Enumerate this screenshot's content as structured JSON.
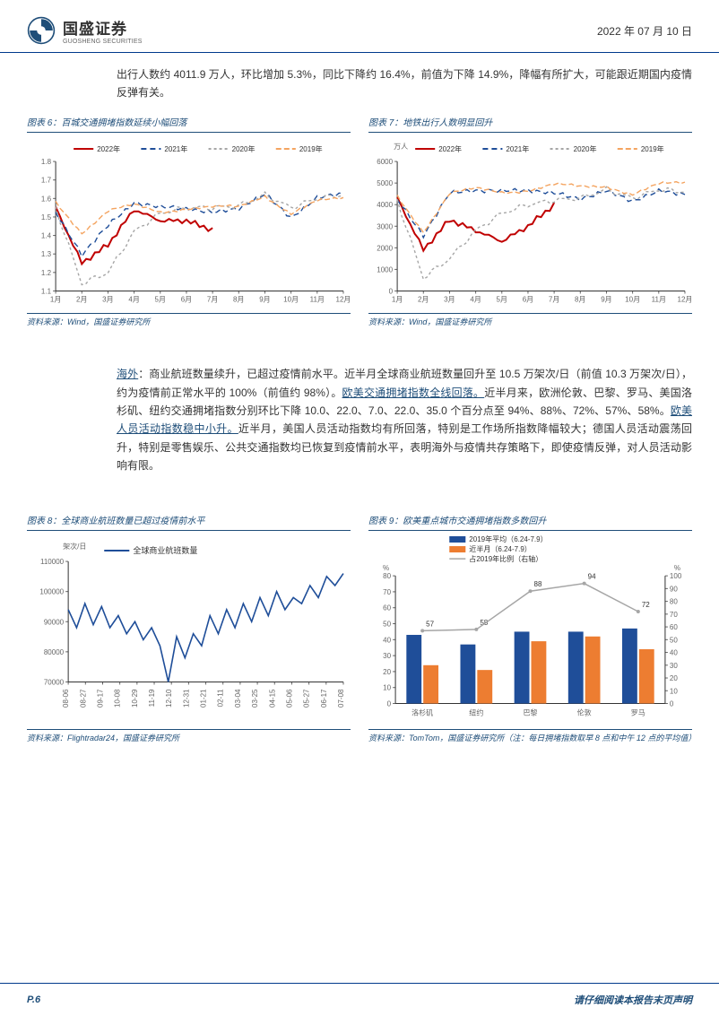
{
  "header": {
    "company_cn": "国盛证券",
    "company_en": "GUOSHENG SECURITIES",
    "date": "2022 年 07 月 10 日"
  },
  "para1": "出行人数约 4011.9 万人，环比增加 5.3%，同比下降约 16.4%，前值为下降 14.9%，降幅有所扩大，可能跟近期国内疫情反弹有关。",
  "chart6": {
    "title": "图表 6：百城交通拥堵指数延续小幅回落",
    "source": "资料来源：Wind，国盛证券研究所",
    "legend": [
      "2022年",
      "2021年",
      "2020年",
      "2019年"
    ],
    "legend_colors": [
      "#c00000",
      "#1f4e99",
      "#a6a6a6",
      "#f4a460"
    ],
    "legend_dash": [
      "0",
      "6,4",
      "3,3",
      "6,3"
    ],
    "months": [
      "1月",
      "2月",
      "3月",
      "4月",
      "5月",
      "6月",
      "7月",
      "8月",
      "9月",
      "10月",
      "11月",
      "12月"
    ],
    "ylim": [
      1.1,
      1.8
    ],
    "yticks": [
      1.1,
      1.2,
      1.3,
      1.4,
      1.5,
      1.6,
      1.7,
      1.8
    ],
    "series": {
      "2022": [
        1.55,
        1.25,
        1.35,
        1.54,
        1.48,
        1.48,
        1.43
      ],
      "2021": [
        1.52,
        1.3,
        1.45,
        1.58,
        1.55,
        1.55,
        1.52,
        1.55,
        1.62,
        1.5,
        1.6,
        1.63
      ],
      "2020": [
        1.55,
        1.14,
        1.2,
        1.42,
        1.52,
        1.55,
        1.55,
        1.56,
        1.62,
        1.55,
        1.6,
        1.62
      ],
      "2019": [
        1.58,
        1.42,
        1.53,
        1.56,
        1.53,
        1.55,
        1.55,
        1.55,
        1.62,
        1.52,
        1.58,
        1.6
      ]
    }
  },
  "chart7": {
    "title": "图表 7：地铁出行人数明显回升",
    "source": "资料来源：Wind，国盛证券研究所",
    "ylabel": "万人",
    "legend": [
      "2022年",
      "2021年",
      "2020年",
      "2019年"
    ],
    "legend_colors": [
      "#c00000",
      "#1f4e99",
      "#a6a6a6",
      "#f4a460"
    ],
    "legend_dash": [
      "0",
      "6,4",
      "3,3",
      "6,3"
    ],
    "months": [
      "1月",
      "2月",
      "3月",
      "4月",
      "5月",
      "6月",
      "7月",
      "8月",
      "9月",
      "10月",
      "11月",
      "12月"
    ],
    "ylim": [
      0,
      6000
    ],
    "yticks": [
      0,
      1000,
      2000,
      3000,
      4000,
      5000,
      6000
    ],
    "series": {
      "2022": [
        4300,
        1900,
        3300,
        2800,
        2300,
        3000,
        4000
      ],
      "2021": [
        4200,
        2600,
        4500,
        4700,
        4600,
        4700,
        4500,
        4300,
        4600,
        4200,
        4600,
        4500
      ],
      "2020": [
        4200,
        600,
        1500,
        2800,
        3600,
        4000,
        4200,
        4300,
        4700,
        4300,
        4700,
        4600
      ],
      "2019": [
        4400,
        2800,
        4500,
        4700,
        4600,
        4700,
        4900,
        4800,
        4900,
        4500,
        4900,
        5000
      ]
    }
  },
  "para2_pre": "海外",
  "para2": "：商业航班数量续升，已超过疫情前水平。近半月全球商业航班数量回升至 10.5 万架次/日（前值 10.3 万架次/日），约为疫情前正常水平的 100%（前值约 98%）。",
  "para2_u2": "欧美交通拥堵指数全线回落。",
  "para2_b": "近半月来，欧洲伦敦、巴黎、罗马、美国洛杉矶、纽约交通拥堵指数分别环比下降 10.0、22.0、7.0、22.0、35.0 个百分点至 94%、88%、72%、57%、58%。",
  "para2_u3": "欧美人员活动指数稳中小升。",
  "para2_c": "近半月，美国人员活动指数均有所回落，特别是工作场所指数降幅较大；德国人员活动震荡回升，特别是零售娱乐、公共交通指数均已恢复到疫情前水平，表明海外与疫情共存策略下，即使疫情反弹，对人员活动影响有限。",
  "chart8": {
    "title": "图表 8：全球商业航班数量已超过疫情前水平",
    "source": "资料来源：Flightradar24，国盛证券研究所",
    "legend_label": "全球商业航班数量",
    "legend_color": "#1f4e99",
    "ylabel": "架次/日",
    "ylim": [
      70000,
      110000
    ],
    "yticks": [
      70000,
      80000,
      90000,
      100000,
      110000
    ],
    "xticks": [
      "08-06",
      "08-27",
      "09-17",
      "10-08",
      "10-29",
      "11-19",
      "12-10",
      "12-31",
      "01-21",
      "02-11",
      "03-04",
      "03-25",
      "04-15",
      "05-06",
      "05-27",
      "06-17",
      "07-08"
    ],
    "values": [
      94000,
      88000,
      96000,
      89000,
      95000,
      88000,
      92000,
      86000,
      90000,
      84000,
      88000,
      82000,
      70000,
      85000,
      78000,
      86000,
      82000,
      92000,
      86000,
      94000,
      88000,
      96000,
      90000,
      98000,
      92000,
      100000,
      94000,
      98000,
      96000,
      102000,
      98000,
      105000,
      102000,
      106000
    ]
  },
  "chart9": {
    "title": "图表 9：欧美重点城市交通拥堵指数多数回升",
    "source": "资料来源：TomTom，国盛证券研究所（注：每日拥堵指数取早 8 点和中午 12 点的平均值）",
    "legend": [
      "2019年平均（6.24-7.9）",
      "近半月（6.24-7.9）",
      "占2019年比例（右轴）"
    ],
    "legend_colors": [
      "#1f4e99",
      "#ed7d31",
      "#a6a6a6"
    ],
    "categories": [
      "洛杉矶",
      "纽约",
      "巴黎",
      "伦敦",
      "罗马"
    ],
    "ylim_left": [
      0,
      80
    ],
    "yticks_left": [
      0,
      10,
      20,
      30,
      40,
      50,
      60,
      70,
      80
    ],
    "ylim_right": [
      0,
      100
    ],
    "yticks_right": [
      0,
      10,
      20,
      30,
      40,
      50,
      60,
      70,
      80,
      90,
      100
    ],
    "ylabel_left": "%",
    "ylabel_right": "%",
    "bars_2019": [
      43,
      37,
      45,
      45,
      47
    ],
    "bars_recent": [
      24,
      21,
      39,
      42,
      34
    ],
    "line_ratio": [
      57,
      58,
      88,
      94,
      72
    ]
  },
  "footer": {
    "page": "P.6",
    "note": "请仔细阅读本报告末页声明"
  }
}
